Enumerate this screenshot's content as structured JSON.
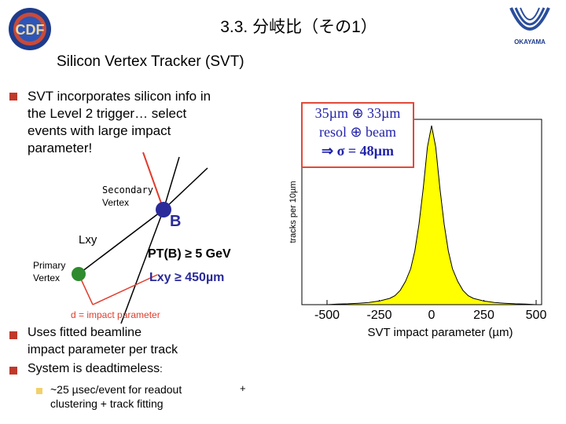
{
  "header": {
    "title": "3.3. 分岐比（その1）",
    "subtitle": "Silicon Vertex Tracker (SVT)",
    "left_logo_text": "CDF",
    "right_logo_text": "OKAYAMA"
  },
  "bullets": {
    "b1": [
      "SVT incorporates silicon info in",
      "the Level 2 trigger… select",
      "events with large impact",
      "parameter!"
    ],
    "b2": [
      "Uses fitted beamline",
      "impact parameter per track"
    ],
    "b3_prefix": "System is deadtimeless",
    "b3_suffix": ":",
    "sub1": [
      "~25 µsec/event for readout",
      "clustering + track fitting"
    ],
    "sub1_plus": "+"
  },
  "diagram": {
    "secondary_vertex_l1": "Secondary",
    "secondary_vertex_l2": "Vertex",
    "b_label": "B",
    "lxy_label": "Lxy",
    "primary_vertex_l1": "Primary",
    "primary_vertex_l2": "Vertex",
    "pt_cut": "PT(B) ≥ 5 GeV",
    "lxy_cut": "Lxy ≥ 450µm",
    "d_label": "d = impact parameter"
  },
  "callout": {
    "line1": "35µm ⊕ 33µm",
    "line2": "resol ⊕ beam",
    "line3": "⇒ σ = 48µm"
  },
  "chart_data": {
    "type": "area",
    "ylabel": "tracks per 10µm",
    "xlabel": "SVT impact parameter (µm)",
    "x_ticks": [
      "-500",
      "-250",
      "0",
      "250",
      "500"
    ],
    "xlim": [
      -500,
      500
    ],
    "fill_color": "#ffff00",
    "x": [
      -500,
      -450,
      -400,
      -350,
      -300,
      -250,
      -200,
      -175,
      -150,
      -125,
      -100,
      -80,
      -60,
      -40,
      -20,
      0,
      20,
      40,
      60,
      80,
      100,
      125,
      150,
      175,
      200,
      250,
      300,
      350,
      400,
      450,
      500
    ],
    "values": [
      0,
      0.003,
      0.005,
      0.008,
      0.012,
      0.02,
      0.035,
      0.05,
      0.08,
      0.13,
      0.2,
      0.3,
      0.45,
      0.65,
      0.88,
      1.0,
      0.88,
      0.65,
      0.45,
      0.3,
      0.2,
      0.13,
      0.08,
      0.05,
      0.035,
      0.02,
      0.012,
      0.008,
      0.005,
      0.003,
      0
    ]
  }
}
